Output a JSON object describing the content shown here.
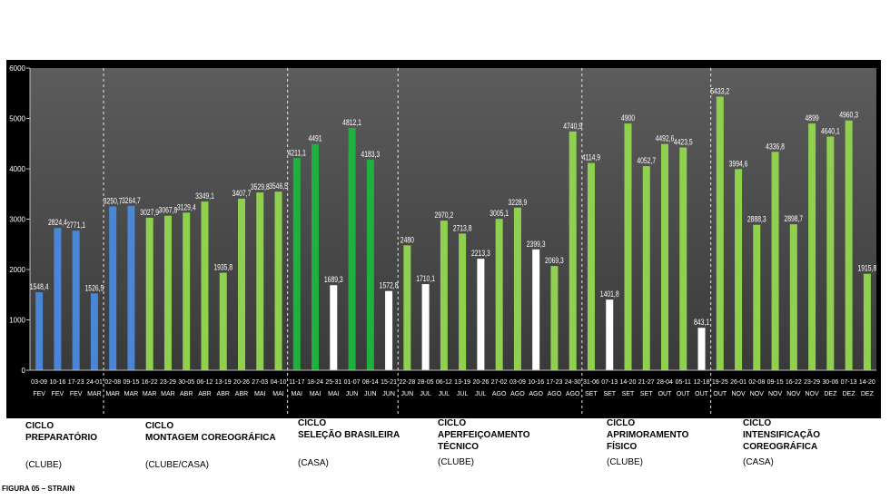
{
  "chart_data": {
    "type": "bar",
    "ylim": [
      0,
      6000
    ],
    "yticks": [
      0,
      1000,
      2000,
      3000,
      4000,
      5000,
      6000
    ],
    "grid": false,
    "legend": "none",
    "categories": [
      [
        "03-09",
        "FEV"
      ],
      [
        "10-16",
        "FEV"
      ],
      [
        "17-23",
        "FEV"
      ],
      [
        "24-01",
        "MAR"
      ],
      [
        "02-08",
        "MAR"
      ],
      [
        "09-15",
        "MAR"
      ],
      [
        "16-22",
        "MAR"
      ],
      [
        "23-29",
        "MAR"
      ],
      [
        "30-05",
        "ABR"
      ],
      [
        "06-12",
        "ABR"
      ],
      [
        "13-19",
        "ABR"
      ],
      [
        "20-26",
        "ABR"
      ],
      [
        "27-03",
        "MAI"
      ],
      [
        "04-10",
        "MAI"
      ],
      [
        "11-17",
        "MAI"
      ],
      [
        "18-24",
        "MAI"
      ],
      [
        "25-31",
        "MAI"
      ],
      [
        "01-07",
        "JUN"
      ],
      [
        "08-14",
        "JUN"
      ],
      [
        "15-21",
        "JUN"
      ],
      [
        "22-28",
        "JUN"
      ],
      [
        "28-05",
        "JUL"
      ],
      [
        "06-12",
        "JUL"
      ],
      [
        "13-19",
        "JUL"
      ],
      [
        "20-26",
        "JUL"
      ],
      [
        "27-02",
        "AGO"
      ],
      [
        "03-09",
        "AGO"
      ],
      [
        "10-16",
        "AGO"
      ],
      [
        "17-23",
        "AGO"
      ],
      [
        "24-30",
        "AGO"
      ],
      [
        "31-06",
        "SET"
      ],
      [
        "07-13",
        "SET"
      ],
      [
        "14-20",
        "SET"
      ],
      [
        "21-27",
        "SET"
      ],
      [
        "28-04",
        "OUT"
      ],
      [
        "05-11",
        "OUT"
      ],
      [
        "12-18",
        "OUT"
      ],
      [
        "19-25",
        "OUT"
      ],
      [
        "26-01",
        "NOV"
      ],
      [
        "02-08",
        "NOV"
      ],
      [
        "09-15",
        "NOV"
      ],
      [
        "16-22",
        "NOV"
      ],
      [
        "23-29",
        "NOV"
      ],
      [
        "30-06",
        "DEZ"
      ],
      [
        "07-13",
        "DEZ"
      ],
      [
        "14-20",
        "DEZ"
      ]
    ],
    "values": [
      1548.4,
      2824.4,
      2771.1,
      1526.5,
      3250.7,
      3264.7,
      3027.9,
      3067.8,
      3129.4,
      3349.1,
      1935.8,
      3407.7,
      3529.8,
      3546.5,
      4211.1,
      4491,
      1689.3,
      4812.1,
      4183.3,
      1572.8,
      2480,
      1710.1,
      2970.2,
      2713.8,
      2213.3,
      3005.1,
      3228.9,
      2399.3,
      2069.3,
      4740.9,
      4114.9,
      1401.8,
      4900,
      4052.7,
      4492.6,
      4423.5,
      843.1,
      5433.2,
      3994.6,
      2888.3,
      4336.8,
      2898.7,
      4899,
      4640.1,
      4960.3,
      1915.8
    ],
    "value_labels": [
      "1548,4",
      "2824,4",
      "2771,1",
      "1526,5",
      "3250,7",
      "3264,7",
      "3027,9",
      "3067,8",
      "3129,4",
      "3349,1",
      "1935,8",
      "3407,7",
      "3529,8",
      "3546,5",
      "4211,1",
      "4491",
      "1689,3",
      "4812,1",
      "4183,3",
      "1572,8",
      "2480",
      "1710,1",
      "2970,2",
      "2713,8",
      "2213,3",
      "3005,1",
      "3228,9",
      "2399,3",
      "2069,3",
      "4740,9",
      "4114,9",
      "1401,8",
      "4900",
      "4052,7",
      "4492,6",
      "4423,5",
      "843,1",
      "5433,2",
      "3994,6",
      "2888,3",
      "4336,8",
      "2898,7",
      "4899",
      "4640,1",
      "4960,3",
      "1915,8"
    ],
    "bar_colors": [
      "b",
      "b",
      "b",
      "b",
      "b",
      "b",
      "g",
      "g",
      "g",
      "g",
      "g",
      "g",
      "g",
      "g",
      "d",
      "d",
      "w",
      "d",
      "d",
      "w",
      "g",
      "w",
      "g",
      "g",
      "w",
      "g",
      "g",
      "w",
      "g",
      "g",
      "g",
      "w",
      "g",
      "g",
      "g",
      "g",
      "w",
      "g",
      "g",
      "g",
      "g",
      "g",
      "g",
      "g",
      "g",
      "g"
    ],
    "color_key": {
      "b": "#4a86d6",
      "g": "#8fd14f",
      "d": "#1fb040",
      "w": "#ffffff"
    },
    "cycle_dividers_after_index": [
      3,
      13,
      19,
      29,
      36
    ]
  },
  "cycles": [
    {
      "title": [
        "CICLO",
        "PREPARATÓRIO"
      ],
      "venue": "(CLUBE)"
    },
    {
      "title": [
        "CICLO",
        "MONTAGEM COREOGRÁFICA"
      ],
      "venue": "(CLUBE/CASA)"
    },
    {
      "title": [
        "CICLO",
        "SELEÇÃO BRASILEIRA"
      ],
      "venue": "(CASA)"
    },
    {
      "title": [
        "CICLO",
        "APERFEIÇOAMENTO",
        "TÉCNICO"
      ],
      "venue": "(CLUBE)"
    },
    {
      "title": [
        "CICLO",
        "APRIMORAMENTO",
        "FÍSICO"
      ],
      "venue": "(CLUBE)"
    },
    {
      "title": [
        "CICLO",
        "INTENSIFICAÇÃO",
        "COREOGRÁFICA"
      ],
      "venue": "(CASA)"
    }
  ],
  "caption": "FIGURA 05 – STRAIN"
}
